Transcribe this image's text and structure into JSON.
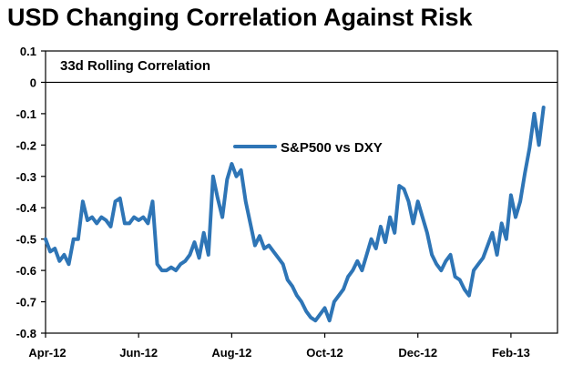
{
  "chart_data": {
    "type": "line",
    "title": "USD Changing Correlation Against Risk",
    "subtitle": "33d Rolling Correlation",
    "xlabel": "",
    "ylabel": "",
    "ylim": [
      -0.8,
      0.1
    ],
    "yticks": [
      0.1,
      0,
      -0.1,
      -0.2,
      -0.3,
      -0.4,
      -0.5,
      -0.6,
      -0.7,
      -0.8
    ],
    "ytick_labels": [
      "0.1",
      "0",
      "-0.1",
      "-0.2",
      "-0.3",
      "-0.4",
      "-0.5",
      "-0.6",
      "-0.7",
      "-0.8"
    ],
    "xlim": [
      0,
      11
    ],
    "xticks": [
      0,
      2,
      4,
      6,
      8,
      10
    ],
    "xtick_labels": [
      "Apr-12",
      "Jun-12",
      "Aug-12",
      "Oct-12",
      "Dec-12",
      "Feb-13"
    ],
    "legend_position": "top-center",
    "series_color": "#2e75b6",
    "series": [
      {
        "name": "S&P500 vs DXY",
        "x": [
          0,
          0.1,
          0.2,
          0.3,
          0.4,
          0.5,
          0.6,
          0.7,
          0.8,
          0.9,
          1.0,
          1.1,
          1.2,
          1.3,
          1.4,
          1.5,
          1.6,
          1.7,
          1.8,
          1.9,
          2.0,
          2.1,
          2.2,
          2.3,
          2.4,
          2.5,
          2.6,
          2.7,
          2.8,
          2.9,
          3.0,
          3.1,
          3.2,
          3.3,
          3.4,
          3.5,
          3.6,
          3.7,
          3.8,
          3.9,
          4.0,
          4.1,
          4.2,
          4.3,
          4.4,
          4.5,
          4.6,
          4.7,
          4.8,
          4.9,
          5.0,
          5.1,
          5.2,
          5.3,
          5.4,
          5.5,
          5.6,
          5.7,
          5.8,
          5.9,
          6.0,
          6.1,
          6.2,
          6.3,
          6.4,
          6.5,
          6.6,
          6.7,
          6.8,
          6.9,
          7.0,
          7.1,
          7.2,
          7.3,
          7.4,
          7.5,
          7.6,
          7.7,
          7.8,
          7.9,
          8.0,
          8.1,
          8.2,
          8.3,
          8.4,
          8.5,
          8.6,
          8.7,
          8.8,
          8.9,
          9.0,
          9.1,
          9.2,
          9.3,
          9.4,
          9.5,
          9.6,
          9.7,
          9.8,
          9.9,
          10.0,
          10.1,
          10.2,
          10.3,
          10.4,
          10.5,
          10.6,
          10.7
        ],
        "values": [
          -0.5,
          -0.54,
          -0.53,
          -0.57,
          -0.55,
          -0.58,
          -0.5,
          -0.5,
          -0.38,
          -0.44,
          -0.43,
          -0.45,
          -0.43,
          -0.44,
          -0.46,
          -0.38,
          -0.37,
          -0.45,
          -0.45,
          -0.43,
          -0.44,
          -0.43,
          -0.45,
          -0.38,
          -0.58,
          -0.6,
          -0.6,
          -0.59,
          -0.6,
          -0.58,
          -0.57,
          -0.55,
          -0.51,
          -0.56,
          -0.48,
          -0.55,
          -0.3,
          -0.37,
          -0.43,
          -0.31,
          -0.26,
          -0.3,
          -0.28,
          -0.38,
          -0.45,
          -0.52,
          -0.49,
          -0.53,
          -0.52,
          -0.54,
          -0.56,
          -0.58,
          -0.63,
          -0.65,
          -0.68,
          -0.7,
          -0.73,
          -0.75,
          -0.76,
          -0.74,
          -0.72,
          -0.76,
          -0.7,
          -0.68,
          -0.66,
          -0.62,
          -0.6,
          -0.57,
          -0.6,
          -0.55,
          -0.5,
          -0.53,
          -0.46,
          -0.51,
          -0.43,
          -0.48,
          -0.33,
          -0.34,
          -0.38,
          -0.45,
          -0.38,
          -0.43,
          -0.48,
          -0.55,
          -0.58,
          -0.6,
          -0.57,
          -0.55,
          -0.62,
          -0.63,
          -0.66,
          -0.68,
          -0.6,
          -0.58,
          -0.56,
          -0.52,
          -0.48,
          -0.55,
          -0.45,
          -0.5,
          -0.36,
          -0.43,
          -0.38,
          -0.29,
          -0.21,
          -0.1,
          -0.2,
          -0.08
        ]
      }
    ]
  }
}
